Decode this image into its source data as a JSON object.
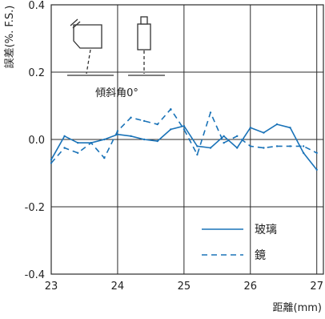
{
  "chart_data": {
    "type": "line",
    "title": "",
    "xlabel": "距離(mm)",
    "ylabel": "誤差(%. F.S.)",
    "xlim": [
      23,
      27.1
    ],
    "ylim": [
      -0.4,
      0.4
    ],
    "x_ticks": [
      "23",
      "24",
      "25",
      "26",
      "27"
    ],
    "y_ticks": [
      "0.4",
      "0.2",
      "0.0",
      "-0.2",
      "-0.4"
    ],
    "grid": true,
    "legend_position": "bottom-right",
    "colors": {
      "series": "#1a73b8",
      "grid": "#2b2b2b",
      "frame": "#2b2b2b"
    },
    "inset": {
      "label": "傾斜角0°"
    },
    "series": [
      {
        "name": "玻璃",
        "style": "solid",
        "x": [
          23.0,
          23.2,
          23.4,
          23.6,
          23.8,
          24.0,
          24.2,
          24.4,
          24.6,
          24.8,
          25.0,
          25.2,
          25.4,
          25.6,
          25.8,
          26.0,
          26.2,
          26.4,
          26.6,
          26.8,
          27.0
        ],
        "y": [
          -0.06,
          0.01,
          -0.01,
          -0.01,
          0.0,
          0.015,
          0.01,
          0.0,
          -0.005,
          0.03,
          0.04,
          -0.02,
          -0.025,
          0.01,
          -0.025,
          0.035,
          0.02,
          0.045,
          0.035,
          -0.04,
          -0.09
        ]
      },
      {
        "name": "鏡",
        "style": "dashed",
        "x": [
          23.0,
          23.2,
          23.4,
          23.6,
          23.8,
          24.0,
          24.2,
          24.4,
          24.6,
          24.8,
          25.0,
          25.2,
          25.4,
          25.6,
          25.8,
          26.0,
          26.2,
          26.4,
          26.6,
          26.8,
          27.0
        ],
        "y": [
          -0.07,
          -0.025,
          -0.04,
          -0.01,
          -0.055,
          0.025,
          0.065,
          0.055,
          0.045,
          0.09,
          0.03,
          -0.045,
          0.08,
          -0.01,
          0.01,
          -0.02,
          -0.025,
          -0.02,
          -0.02,
          -0.02,
          -0.04
        ]
      }
    ]
  }
}
